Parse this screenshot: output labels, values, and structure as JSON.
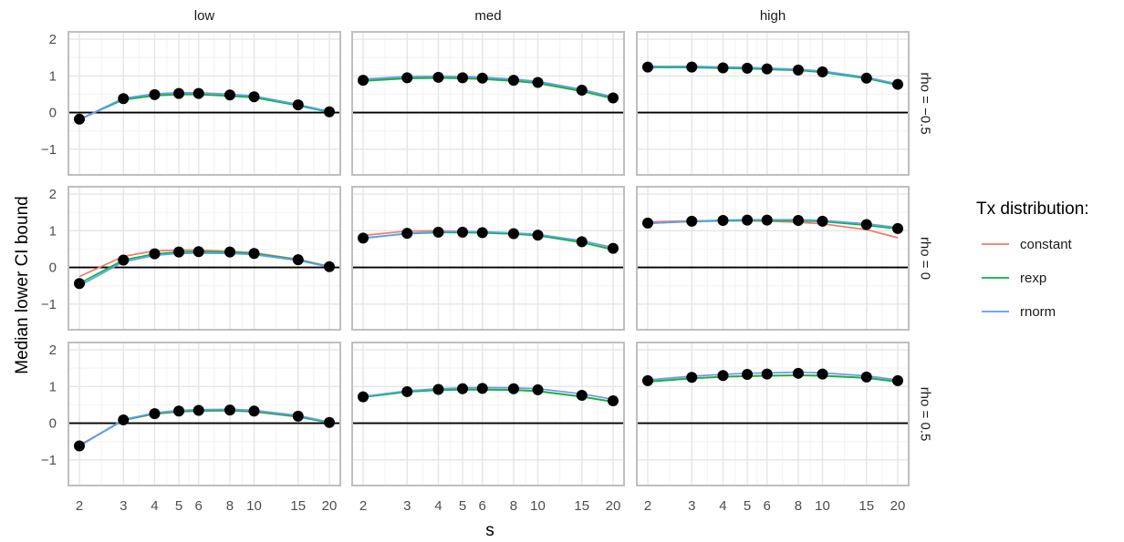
{
  "chart_data": {
    "type": "line",
    "xlabel": "s",
    "ylabel": "Median lower CI bound",
    "x_scale": "log",
    "x_ticks": [
      2,
      3,
      4,
      5,
      6,
      8,
      10,
      15,
      20
    ],
    "x_tick_labels": [
      "2",
      "3",
      "4",
      "5",
      "6",
      "8",
      "10",
      "15",
      "20"
    ],
    "ylim": [
      -1.7,
      2.2
    ],
    "y_ticks": [
      -1,
      0,
      1,
      2
    ],
    "y_tick_labels": [
      "−1",
      "0",
      "1",
      "2"
    ],
    "reference_line_y": 0,
    "grid": true,
    "col_facets": [
      "low",
      "med",
      "high"
    ],
    "row_facets": [
      "rho = −0.5",
      "rho = 0",
      "rho = 0.5"
    ],
    "legend": {
      "title": "Tx distribution:",
      "position": "right",
      "entries": [
        {
          "name": "constant",
          "color": "#F8766D"
        },
        {
          "name": "rexp",
          "color": "#00BA38"
        },
        {
          "name": "rnorm",
          "color": "#619CFF"
        }
      ]
    },
    "point_color": "#000000",
    "panels": [
      {
        "row": 0,
        "col": 0,
        "series": [
          {
            "name": "constant",
            "values": [
              -0.2,
              0.38,
              0.48,
              0.5,
              0.5,
              0.46,
              0.42,
              0.2,
              0.02
            ]
          },
          {
            "name": "rexp",
            "values": [
              -0.18,
              0.35,
              0.46,
              0.49,
              0.49,
              0.45,
              0.41,
              0.19,
              0.01
            ]
          },
          {
            "name": "rnorm",
            "values": [
              -0.19,
              0.39,
              0.51,
              0.54,
              0.54,
              0.5,
              0.45,
              0.22,
              0.03
            ]
          }
        ],
        "points": [
          -0.18,
          0.38,
          0.49,
          0.52,
          0.52,
          0.48,
          0.43,
          0.21,
          0.02
        ]
      },
      {
        "row": 0,
        "col": 1,
        "series": [
          {
            "name": "constant",
            "values": [
              0.88,
              0.95,
              0.96,
              0.95,
              0.93,
              0.88,
              0.82,
              0.6,
              0.4
            ]
          },
          {
            "name": "rexp",
            "values": [
              0.86,
              0.93,
              0.94,
              0.93,
              0.91,
              0.86,
              0.8,
              0.58,
              0.38
            ]
          },
          {
            "name": "rnorm",
            "values": [
              0.91,
              0.98,
              0.99,
              0.98,
              0.96,
              0.91,
              0.85,
              0.63,
              0.43
            ]
          }
        ],
        "points": [
          0.88,
          0.95,
          0.96,
          0.95,
          0.94,
          0.88,
          0.82,
          0.61,
          0.4
        ]
      },
      {
        "row": 0,
        "col": 2,
        "series": [
          {
            "name": "constant",
            "values": [
              1.24,
              1.24,
              1.22,
              1.21,
              1.19,
              1.16,
              1.11,
              0.94,
              0.76
            ]
          },
          {
            "name": "rexp",
            "values": [
              1.23,
              1.23,
              1.21,
              1.2,
              1.18,
              1.15,
              1.1,
              0.93,
              0.75
            ]
          },
          {
            "name": "rnorm",
            "values": [
              1.26,
              1.26,
              1.24,
              1.23,
              1.21,
              1.18,
              1.13,
              0.96,
              0.78
            ]
          }
        ],
        "points": [
          1.24,
          1.24,
          1.22,
          1.21,
          1.19,
          1.16,
          1.11,
          0.94,
          0.77
        ]
      },
      {
        "row": 1,
        "col": 0,
        "series": [
          {
            "name": "constant",
            "values": [
              -0.25,
              0.3,
              0.45,
              0.47,
              0.47,
              0.44,
              0.4,
              0.22,
              0.03
            ]
          },
          {
            "name": "rexp",
            "values": [
              -0.44,
              0.2,
              0.37,
              0.42,
              0.43,
              0.42,
              0.38,
              0.21,
              0.02
            ]
          },
          {
            "name": "rnorm",
            "values": [
              -0.5,
              0.15,
              0.33,
              0.38,
              0.39,
              0.38,
              0.35,
              0.19,
              0.01
            ]
          }
        ],
        "points": [
          -0.44,
          0.2,
          0.37,
          0.42,
          0.43,
          0.42,
          0.38,
          0.21,
          0.02
        ]
      },
      {
        "row": 1,
        "col": 1,
        "series": [
          {
            "name": "constant",
            "values": [
              0.87,
              0.99,
              1.0,
              0.98,
              0.96,
              0.92,
              0.87,
              0.68,
              0.5
            ]
          },
          {
            "name": "rexp",
            "values": [
              0.8,
              0.92,
              0.95,
              0.95,
              0.94,
              0.91,
              0.87,
              0.68,
              0.48
            ]
          },
          {
            "name": "rnorm",
            "values": [
              0.79,
              0.93,
              0.97,
              0.98,
              0.97,
              0.94,
              0.9,
              0.73,
              0.54
            ]
          }
        ],
        "points": [
          0.8,
          0.93,
          0.96,
          0.96,
          0.95,
          0.92,
          0.88,
          0.7,
          0.52
        ]
      },
      {
        "row": 1,
        "col": 2,
        "series": [
          {
            "name": "constant",
            "values": [
              1.24,
              1.27,
              1.27,
              1.27,
              1.26,
              1.23,
              1.19,
              1.03,
              0.81
            ]
          },
          {
            "name": "rexp",
            "values": [
              1.2,
              1.25,
              1.27,
              1.28,
              1.28,
              1.27,
              1.25,
              1.15,
              1.05
            ]
          },
          {
            "name": "rnorm",
            "values": [
              1.2,
              1.26,
              1.29,
              1.3,
              1.3,
              1.3,
              1.28,
              1.19,
              1.09
            ]
          }
        ],
        "points": [
          1.21,
          1.26,
          1.28,
          1.29,
          1.29,
          1.28,
          1.26,
          1.17,
          1.06
        ]
      },
      {
        "row": 2,
        "col": 0,
        "series": [
          {
            "name": "constant",
            "values": [
              -0.6,
              0.08,
              0.25,
              0.31,
              0.33,
              0.34,
              0.31,
              0.17,
              0.01
            ]
          },
          {
            "name": "rexp",
            "values": [
              -0.62,
              0.08,
              0.26,
              0.32,
              0.34,
              0.35,
              0.32,
              0.18,
              0.01
            ]
          },
          {
            "name": "rnorm",
            "values": [
              -0.63,
              0.1,
              0.28,
              0.35,
              0.37,
              0.38,
              0.35,
              0.21,
              0.03
            ]
          }
        ],
        "points": [
          -0.62,
          0.09,
          0.26,
          0.33,
          0.35,
          0.36,
          0.33,
          0.19,
          0.02
        ]
      },
      {
        "row": 2,
        "col": 1,
        "series": [
          {
            "name": "constant",
            "values": [
              0.72,
              0.86,
              0.91,
              0.92,
              0.92,
              0.91,
              0.88,
              0.73,
              0.59
            ]
          },
          {
            "name": "rexp",
            "values": [
              0.71,
              0.85,
              0.9,
              0.91,
              0.91,
              0.9,
              0.87,
              0.72,
              0.58
            ]
          },
          {
            "name": "rnorm",
            "values": [
              0.73,
              0.88,
              0.94,
              0.96,
              0.97,
              0.96,
              0.94,
              0.8,
              0.65
            ]
          }
        ],
        "points": [
          0.72,
          0.86,
          0.92,
          0.94,
          0.95,
          0.94,
          0.91,
          0.76,
          0.61
        ]
      },
      {
        "row": 2,
        "col": 2,
        "series": [
          {
            "name": "constant",
            "values": [
              1.14,
              1.23,
              1.27,
              1.29,
              1.3,
              1.31,
              1.3,
              1.24,
              1.14
            ]
          },
          {
            "name": "rexp",
            "values": [
              1.13,
              1.22,
              1.26,
              1.28,
              1.29,
              1.3,
              1.29,
              1.23,
              1.13
            ]
          },
          {
            "name": "rnorm",
            "values": [
              1.18,
              1.28,
              1.33,
              1.36,
              1.37,
              1.39,
              1.37,
              1.29,
              1.18
            ]
          }
        ],
        "points": [
          1.16,
          1.25,
          1.3,
          1.33,
          1.34,
          1.36,
          1.34,
          1.26,
          1.16
        ]
      }
    ]
  }
}
